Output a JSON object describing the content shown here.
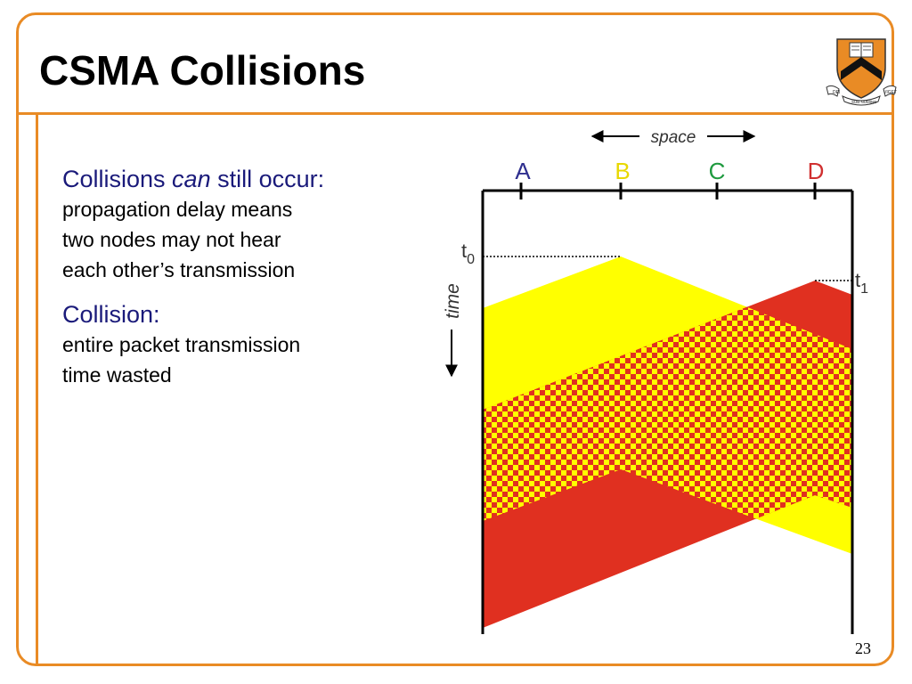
{
  "slide": {
    "title": "CSMA Collisions",
    "page_number": "23",
    "colors": {
      "accent": "#e98b25",
      "heading": "#1a1a7a",
      "yellow": "#ffff00",
      "red": "#e03020"
    }
  },
  "logo": {
    "motto_left": "DEI",
    "motto_right": "SUB NUMINE",
    "motto_far_right": "VIGET",
    "icon": "princeton-shield-icon"
  },
  "content": {
    "block1": {
      "heading_pre": "Collisions ",
      "heading_em": "can",
      "heading_post": " still occur:",
      "lines": [
        "propagation delay means",
        "two nodes may not hear",
        "each other’s transmission"
      ]
    },
    "block2": {
      "heading": "Collision:",
      "lines": [
        "entire packet transmission",
        "time wasted"
      ]
    }
  },
  "diagram": {
    "space_label": "space",
    "time_label": "time",
    "nodes": [
      {
        "label": "A",
        "color": "#2f2f8f"
      },
      {
        "label": "B",
        "color": "#e8d800"
      },
      {
        "label": "C",
        "color": "#1f9a3f"
      },
      {
        "label": "D",
        "color": "#d03030"
      }
    ],
    "t0": {
      "main": "t",
      "sub": "0"
    },
    "t1": {
      "main": "t",
      "sub": "1"
    }
  }
}
